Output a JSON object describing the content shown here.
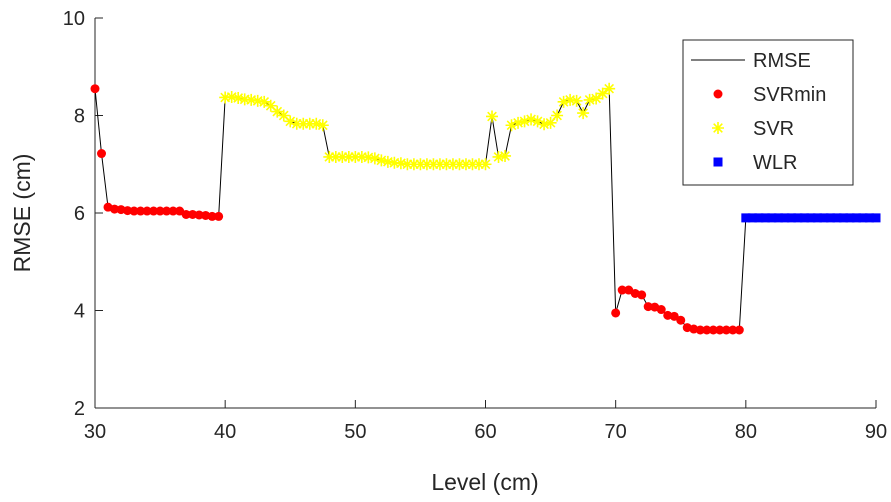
{
  "chart_data": {
    "type": "line",
    "xlabel": "Level (cm)",
    "ylabel": "RMSE (cm)",
    "xlim": [
      30,
      90
    ],
    "ylim": [
      2,
      10
    ],
    "xticks": [
      30,
      40,
      50,
      60,
      70,
      80,
      90
    ],
    "yticks": [
      2,
      4,
      6,
      8,
      10
    ],
    "legend": "northeast",
    "series": [
      {
        "name": "RMSE",
        "type": "line",
        "color": "#000000",
        "x": [
          30,
          30.5,
          31,
          31.5,
          32,
          32.5,
          33,
          33.5,
          34,
          34.5,
          35,
          35.5,
          36,
          36.5,
          37,
          37.5,
          38,
          38.5,
          39,
          39.5,
          40,
          40.5,
          41,
          41.5,
          42,
          42.5,
          43,
          43.5,
          44,
          44.5,
          45,
          45.5,
          46,
          46.5,
          47,
          47.5,
          48,
          48.5,
          49,
          49.5,
          50,
          50.5,
          51,
          51.5,
          52,
          52.5,
          53,
          53.5,
          54,
          54.5,
          55,
          55.5,
          56,
          56.5,
          57,
          57.5,
          58,
          58.5,
          59,
          59.5,
          60,
          60.5,
          61,
          61.5,
          62,
          62.5,
          63,
          63.5,
          64,
          64.5,
          65,
          65.5,
          66,
          66.5,
          67,
          67.5,
          68,
          68.5,
          69,
          69.5,
          70,
          70.5,
          71,
          71.5,
          72,
          72.5,
          73,
          73.5,
          74,
          74.5,
          75,
          75.5,
          76,
          76.5,
          77,
          77.5,
          78,
          78.5,
          79,
          79.5,
          80,
          80.5,
          81,
          81.5,
          82,
          82.5,
          83,
          83.5,
          84,
          84.5,
          85,
          85.5,
          86,
          86.5,
          87,
          87.5,
          88,
          88.5,
          89,
          89.5,
          90
        ],
        "values": [
          8.55,
          7.22,
          6.12,
          6.08,
          6.07,
          6.05,
          6.04,
          6.04,
          6.04,
          6.04,
          6.04,
          6.04,
          6.04,
          6.04,
          5.97,
          5.97,
          5.96,
          5.95,
          5.93,
          5.93,
          8.37,
          8.38,
          8.36,
          8.33,
          8.32,
          8.3,
          8.28,
          8.2,
          8.08,
          8.0,
          7.88,
          7.83,
          7.83,
          7.83,
          7.83,
          7.8,
          7.15,
          7.15,
          7.15,
          7.15,
          7.15,
          7.15,
          7.14,
          7.12,
          7.08,
          7.05,
          7.03,
          7.02,
          7.0,
          7.0,
          7.0,
          7.0,
          7.0,
          7.0,
          7.0,
          7.0,
          7.0,
          7.0,
          7.0,
          7.0,
          7.0,
          7.98,
          7.15,
          7.17,
          7.8,
          7.85,
          7.88,
          7.92,
          7.88,
          7.82,
          7.85,
          8.0,
          8.28,
          8.32,
          8.3,
          8.05,
          8.32,
          8.35,
          8.45,
          8.55,
          3.95,
          4.42,
          4.42,
          4.35,
          4.32,
          4.08,
          4.07,
          4.02,
          3.9,
          3.88,
          3.8,
          3.65,
          3.62,
          3.6,
          3.6,
          3.6,
          3.6,
          3.6,
          3.6,
          3.6,
          5.9,
          5.9,
          5.9,
          5.9,
          5.9,
          5.9,
          5.9,
          5.9,
          5.9,
          5.9,
          5.9,
          5.9,
          5.9,
          5.9,
          5.9,
          5.9,
          5.9,
          5.9,
          5.9,
          5.9,
          5.9
        ]
      },
      {
        "name": "SVRmin",
        "type": "circle",
        "color": "#ff0000",
        "x": [
          30,
          30.5,
          31,
          31.5,
          32,
          32.5,
          33,
          33.5,
          34,
          34.5,
          35,
          35.5,
          36,
          36.5,
          37,
          37.5,
          38,
          38.5,
          39,
          39.5,
          70,
          70.5,
          71,
          71.5,
          72,
          72.5,
          73,
          73.5,
          74,
          74.5,
          75,
          75.5,
          76,
          76.5,
          77,
          77.5,
          78,
          78.5,
          79,
          79.5
        ],
        "values": [
          8.55,
          7.22,
          6.12,
          6.08,
          6.07,
          6.05,
          6.04,
          6.04,
          6.04,
          6.04,
          6.04,
          6.04,
          6.04,
          6.04,
          5.97,
          5.97,
          5.96,
          5.95,
          5.93,
          5.93,
          3.95,
          4.42,
          4.42,
          4.35,
          4.32,
          4.08,
          4.07,
          4.02,
          3.9,
          3.88,
          3.8,
          3.65,
          3.62,
          3.6,
          3.6,
          3.6,
          3.6,
          3.6,
          3.6,
          3.6
        ]
      },
      {
        "name": "SVR",
        "type": "star",
        "color": "#ffff00",
        "x": [
          40,
          40.5,
          41,
          41.5,
          42,
          42.5,
          43,
          43.5,
          44,
          44.5,
          45,
          45.5,
          46,
          46.5,
          47,
          47.5,
          48,
          48.5,
          49,
          49.5,
          50,
          50.5,
          51,
          51.5,
          52,
          52.5,
          53,
          53.5,
          54,
          54.5,
          55,
          55.5,
          56,
          56.5,
          57,
          57.5,
          58,
          58.5,
          59,
          59.5,
          60,
          60.5,
          61,
          61.5,
          62,
          62.5,
          63,
          63.5,
          64,
          64.5,
          65,
          65.5,
          66,
          66.5,
          67,
          67.5,
          68,
          68.5,
          69,
          69.5
        ],
        "values": [
          8.37,
          8.38,
          8.36,
          8.33,
          8.32,
          8.3,
          8.28,
          8.2,
          8.08,
          8.0,
          7.88,
          7.83,
          7.83,
          7.83,
          7.83,
          7.8,
          7.15,
          7.15,
          7.15,
          7.15,
          7.15,
          7.15,
          7.14,
          7.12,
          7.08,
          7.05,
          7.03,
          7.02,
          7.0,
          7.0,
          7.0,
          7.0,
          7.0,
          7.0,
          7.0,
          7.0,
          7.0,
          7.0,
          7.0,
          7.0,
          7.0,
          7.98,
          7.15,
          7.17,
          7.8,
          7.85,
          7.88,
          7.92,
          7.88,
          7.82,
          7.85,
          8.0,
          8.28,
          8.32,
          8.3,
          8.05,
          8.32,
          8.35,
          8.45,
          8.55
        ]
      },
      {
        "name": "WLR",
        "type": "square",
        "color": "#0000ff",
        "x": [
          80,
          80.5,
          81,
          81.5,
          82,
          82.5,
          83,
          83.5,
          84,
          84.5,
          85,
          85.5,
          86,
          86.5,
          87,
          87.5,
          88,
          88.5,
          89,
          89.5,
          90
        ],
        "values": [
          5.9,
          5.9,
          5.9,
          5.9,
          5.9,
          5.9,
          5.9,
          5.9,
          5.9,
          5.9,
          5.9,
          5.9,
          5.9,
          5.9,
          5.9,
          5.9,
          5.9,
          5.9,
          5.9,
          5.9,
          5.9
        ]
      }
    ]
  }
}
